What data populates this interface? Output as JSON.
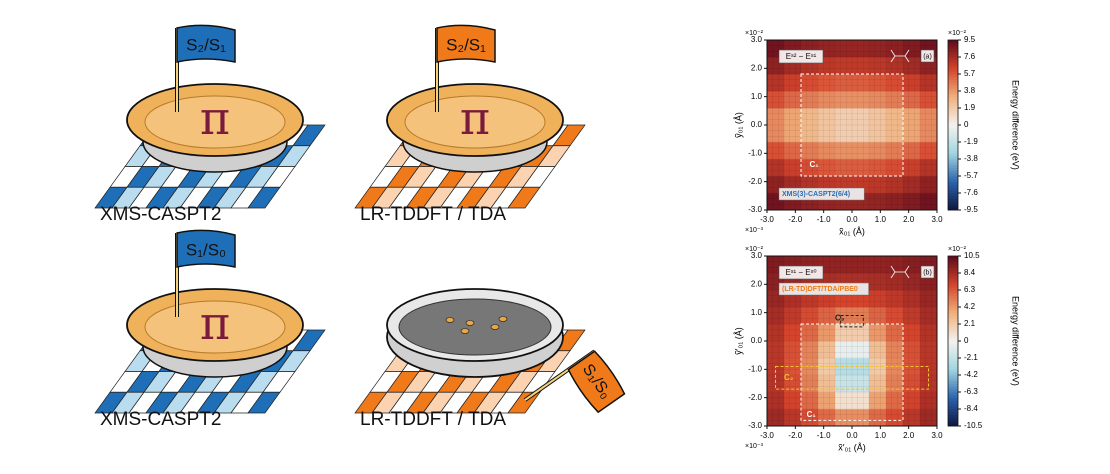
{
  "illustrations": [
    {
      "caption": "XMS-CASPT2",
      "flag": "S₂/S₁",
      "symbol": "π",
      "color": "#1f6fb8",
      "light": "#b9dcef",
      "state": "full"
    },
    {
      "caption": "LR-TDDFT / TDA",
      "flag": "S₂/S₁",
      "symbol": "π",
      "color": "#f07a1a",
      "light": "#fbd3b0",
      "state": "full"
    },
    {
      "caption": "XMS-CASPT2",
      "flag": "S₁/S₀",
      "symbol": "π",
      "color": "#1f6fb8",
      "light": "#b9dcef",
      "state": "full"
    },
    {
      "caption": "LR-TDDFT / TDA",
      "flag": "S₁/S₀",
      "color": "#f07a1a",
      "light": "#fbd3b0",
      "state": "empty"
    }
  ],
  "chart_data": [
    {
      "type": "heatmap",
      "title": "Eˢ² − Eˢ¹",
      "panel": "(a)",
      "method": "XMS(3)-CASPT2(6/4)",
      "method_color": "#2a6fb5",
      "x_label": "x̃₀₁ (Å)",
      "y_label": "ỹ₀₁ (Å)",
      "x_multiplier": "×10⁻³",
      "y_multiplier": "×10⁻²",
      "colorbar_label": "Energy difference (eV)",
      "colorbar_multiplier": "×10⁻²",
      "xlim": [
        -3,
        3
      ],
      "ylim": [
        -3,
        3
      ],
      "xticks": [
        {
          "value": -3,
          "label": "-3.0"
        },
        {
          "value": -2,
          "label": "-2.0"
        },
        {
          "value": -1,
          "label": "-1.0"
        },
        {
          "value": 0,
          "label": "0.0"
        },
        {
          "value": 1,
          "label": "1.0"
        },
        {
          "value": 2,
          "label": "2.0"
        },
        {
          "value": 3,
          "label": "3.0"
        }
      ],
      "yticks": [
        {
          "value": -3,
          "label": "-3.0"
        },
        {
          "value": -2,
          "label": "-2.0"
        },
        {
          "value": -1,
          "label": "-1.0"
        },
        {
          "value": 0,
          "label": "0.0"
        },
        {
          "value": 1,
          "label": "1.0"
        },
        {
          "value": 2,
          "label": "2.0"
        },
        {
          "value": 3,
          "label": "3.0"
        }
      ],
      "x": [
        -2.7,
        -2.1,
        -1.5,
        -0.9,
        -0.3,
        0.3,
        0.9,
        1.5,
        2.1,
        2.7
      ],
      "y": [
        -2.7,
        -2.1,
        -1.5,
        -0.9,
        -0.3,
        0.3,
        0.9,
        1.5,
        2.1,
        2.7
      ],
      "z": [
        [
          9.0,
          8.6,
          8.3,
          8.1,
          8.0,
          8.0,
          8.1,
          8.3,
          8.6,
          9.0
        ],
        [
          8.2,
          7.7,
          7.3,
          7.0,
          6.9,
          6.9,
          7.0,
          7.3,
          7.7,
          8.2
        ],
        [
          7.2,
          6.6,
          6.1,
          5.8,
          5.6,
          5.6,
          5.8,
          6.1,
          6.6,
          7.2
        ],
        [
          6.0,
          5.3,
          4.7,
          4.3,
          4.1,
          4.1,
          4.3,
          4.7,
          5.3,
          6.0
        ],
        [
          4.3,
          3.5,
          2.8,
          2.2,
          1.8,
          1.8,
          2.2,
          2.8,
          3.5,
          4.3
        ],
        [
          4.3,
          3.5,
          2.8,
          2.2,
          1.8,
          1.8,
          2.2,
          2.8,
          3.5,
          4.3
        ],
        [
          6.0,
          5.3,
          4.7,
          4.3,
          4.1,
          4.1,
          4.3,
          4.7,
          5.3,
          6.0
        ],
        [
          7.2,
          6.6,
          6.1,
          5.8,
          5.6,
          5.6,
          5.8,
          6.1,
          6.6,
          7.2
        ],
        [
          8.2,
          7.7,
          7.3,
          7.0,
          6.9,
          6.9,
          7.0,
          7.3,
          7.7,
          8.2
        ],
        [
          9.0,
          8.6,
          8.3,
          8.1,
          8.0,
          8.0,
          8.1,
          8.3,
          8.6,
          9.0
        ]
      ],
      "zlim": [
        -9.5,
        9.5
      ],
      "zticks": [
        9.5,
        7.6,
        5.7,
        3.8,
        1.9,
        0,
        -1.9,
        -3.8,
        -5.7,
        -7.6,
        -9.5
      ],
      "colormap": [
        "#0b1640",
        "#2c63ad",
        "#9fd4df",
        "#f4f2ef",
        "#f0b07c",
        "#d4442c",
        "#5e0b1c"
      ],
      "annotations": [
        {
          "text": "C₁"
        }
      ]
    },
    {
      "type": "heatmap",
      "title": "Eˢ¹ − Eˢ⁰",
      "panel": "(b)",
      "method": "(LR-TD)DFT/TDA/PBE0",
      "method_color": "#f07a1a",
      "x_label": "x̃′₀₁ (Å)",
      "y_label": "ỹ′₀₁ (Å)",
      "x_multiplier": "×10⁻³",
      "y_multiplier": "×10⁻²",
      "colorbar_label": "Energy difference (eV)",
      "colorbar_multiplier": "×10⁻²",
      "xlim": [
        -3,
        3
      ],
      "ylim": [
        -3,
        3
      ],
      "xticks": [
        {
          "value": -3,
          "label": "-3.0"
        },
        {
          "value": -2,
          "label": "-2.0"
        },
        {
          "value": -1,
          "label": "-1.0"
        },
        {
          "value": 0,
          "label": "0.0"
        },
        {
          "value": 1,
          "label": "1.0"
        },
        {
          "value": 2,
          "label": "2.0"
        },
        {
          "value": 3,
          "label": "3.0"
        }
      ],
      "yticks": [
        {
          "value": -3,
          "label": "-3.0"
        },
        {
          "value": -2,
          "label": "-2.0"
        },
        {
          "value": -1,
          "label": "-1.0"
        },
        {
          "value": 0,
          "label": "0.0"
        },
        {
          "value": 1,
          "label": "1.0"
        },
        {
          "value": 2,
          "label": "2.0"
        },
        {
          "value": 3,
          "label": "3.0"
        }
      ],
      "x": [
        -2.7,
        -2.1,
        -1.5,
        -0.9,
        -0.3,
        0.3,
        0.9,
        1.5,
        2.1,
        2.7
      ],
      "y": [
        -2.7,
        -2.1,
        -1.5,
        -0.9,
        -0.3,
        0.3,
        0.9,
        1.5,
        2.1,
        2.7
      ],
      "z": [
        [
          8.6,
          7.8,
          6.8,
          5.8,
          4.6,
          4.6,
          5.8,
          6.8,
          7.8,
          8.6
        ],
        [
          8.2,
          7.1,
          5.8,
          4.0,
          1.0,
          1.0,
          4.0,
          5.8,
          7.1,
          8.2
        ],
        [
          7.9,
          6.7,
          5.1,
          2.8,
          -1.8,
          -1.8,
          2.8,
          5.1,
          6.7,
          7.9
        ],
        [
          7.8,
          6.5,
          4.8,
          2.2,
          -2.5,
          -2.5,
          2.2,
          4.8,
          6.5,
          7.8
        ],
        [
          7.8,
          6.6,
          5.0,
          2.8,
          -0.5,
          -0.5,
          2.8,
          5.0,
          6.6,
          7.8
        ],
        [
          8.0,
          7.0,
          5.8,
          4.3,
          2.0,
          2.0,
          4.3,
          5.8,
          7.0,
          8.0
        ],
        [
          8.4,
          7.6,
          6.8,
          6.0,
          5.2,
          5.2,
          6.0,
          6.8,
          7.6,
          8.4
        ],
        [
          8.8,
          8.2,
          7.7,
          7.3,
          7.0,
          7.0,
          7.3,
          7.7,
          8.2,
          8.8
        ],
        [
          9.2,
          8.8,
          8.5,
          8.3,
          8.2,
          8.2,
          8.3,
          8.5,
          8.8,
          9.2
        ],
        [
          9.5,
          9.3,
          9.1,
          9.0,
          9.0,
          9.0,
          9.0,
          9.1,
          9.3,
          9.5
        ]
      ],
      "zlim": [
        -10.5,
        10.5
      ],
      "zticks": [
        10.5,
        8.4,
        6.3,
        4.2,
        2.1,
        0,
        -2.1,
        -4.2,
        -6.3,
        -8.4,
        -10.5
      ],
      "colormap": [
        "#0b1640",
        "#2c63ad",
        "#9fd4df",
        "#f4f2ef",
        "#f0b07c",
        "#d4442c",
        "#5e0b1c"
      ],
      "annotations": [
        {
          "text": "C₁"
        },
        {
          "text": "C₂"
        },
        {
          "text": "C₃"
        }
      ]
    }
  ]
}
